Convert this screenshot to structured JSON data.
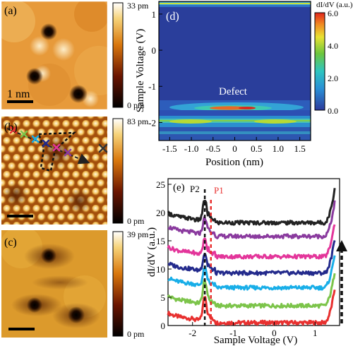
{
  "panels": {
    "a": {
      "label": "(a)",
      "scale_bar": "1 nm",
      "colorbar_max": "33 pm",
      "colorbar_min": "0 pm"
    },
    "b": {
      "label": "(b)",
      "colorbar_max": "83 pm",
      "colorbar_min": "0 pm"
    },
    "c": {
      "label": "(c)",
      "colorbar_max": "39 pm",
      "colorbar_min": "0 pm"
    },
    "d": {
      "label": "(d)",
      "annotation": "Defect",
      "colorbar_title": "dI/dV (a.u.)"
    },
    "e": {
      "label": "(e)",
      "marker_p2": "P2",
      "marker_p1": "P1"
    }
  },
  "chart_data": [
    {
      "type": "heatmap",
      "panel": "d",
      "xlabel": "Position (nm)",
      "ylabel": "Sample Voltage (V)",
      "xlim": [
        -1.75,
        1.75
      ],
      "ylim": [
        -2.5,
        1.35
      ],
      "x_ticks": [
        -1.5,
        -1.0,
        -0.5,
        0,
        0.5,
        1.0,
        1.5
      ],
      "x_tick_labels": [
        "-1.5",
        "-1.0",
        "-0.5",
        "0",
        "0.5",
        "1.0",
        "1.5"
      ],
      "y_ticks": [
        1,
        0,
        -1,
        -2
      ],
      "y_tick_labels": [
        "1",
        "0",
        "-1",
        "-2"
      ],
      "colorbar": {
        "min": 0.0,
        "max": 6.0,
        "ticks": [
          6.0,
          4.0,
          2.0,
          0.0
        ],
        "tick_labels": [
          "6.0",
          "4.0",
          "2.0",
          "0.0"
        ]
      }
    },
    {
      "type": "line",
      "panel": "e",
      "xlabel": "Sample Voltage (V)",
      "ylabel": "dI/dV (a.u.)",
      "xlim": [
        -2.6,
        1.6
      ],
      "ylim": [
        0,
        26
      ],
      "x_ticks": [
        -2,
        -1,
        0,
        1
      ],
      "x_tick_labels": [
        "-2",
        "-1",
        "0",
        "1"
      ],
      "y_ticks": [
        0,
        5,
        10,
        15,
        20,
        25
      ],
      "y_tick_labels": [
        "0",
        "5",
        "10",
        "15",
        "20",
        "25"
      ],
      "p2_voltage": -1.7,
      "p1_voltage": -1.55,
      "series": [
        {
          "color": "#e8302f",
          "offset": 0.5,
          "peak": 4.2
        },
        {
          "color": "#7cc44a",
          "offset": 3.5,
          "peak": 4.0
        },
        {
          "color": "#18aee8",
          "offset": 6.7,
          "peak": 3.0
        },
        {
          "color": "#232a8c",
          "offset": 9.3,
          "peak": 3.0
        },
        {
          "color": "#e3359a",
          "offset": 12.2,
          "peak": 2.6
        },
        {
          "color": "#8a3a9e",
          "offset": 15.8,
          "peak": 2.8
        },
        {
          "color": "#222222",
          "offset": 18.2,
          "peak": 3.6
        }
      ]
    }
  ]
}
